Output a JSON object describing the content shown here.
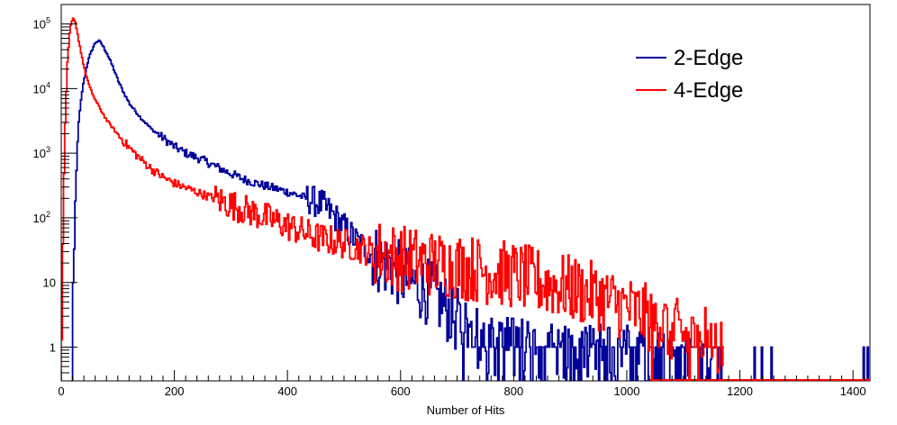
{
  "chart_data": {
    "type": "histogram",
    "xlabel": "Number of Hits",
    "ylabel": "",
    "xlim": [
      0,
      1430
    ],
    "ylim": [
      0.3,
      200000
    ],
    "yscale": "log",
    "grid": false,
    "legend_position": "top-right",
    "x_tick_labels": [
      "0",
      "200",
      "400",
      "600",
      "800",
      "1000",
      "1200",
      "1400"
    ],
    "x_tick_values": [
      0,
      200,
      400,
      600,
      800,
      1000,
      1200,
      1400
    ],
    "y_tick_labels": [
      {
        "value": 1,
        "base": "1",
        "exp": ""
      },
      {
        "value": 10,
        "base": "10",
        "exp": ""
      },
      {
        "value": 100,
        "base": "10",
        "exp": "2"
      },
      {
        "value": 1000,
        "base": "10",
        "exp": "3"
      },
      {
        "value": 10000,
        "base": "10",
        "exp": "4"
      },
      {
        "value": 100000,
        "base": "10",
        "exp": "5"
      }
    ],
    "series": [
      {
        "name": "2-Edge",
        "color": "#000099",
        "points": [
          [
            18,
            0.3
          ],
          [
            20,
            3
          ],
          [
            25,
            400
          ],
          [
            30,
            3000
          ],
          [
            35,
            8000
          ],
          [
            40,
            15000
          ],
          [
            45,
            24000
          ],
          [
            50,
            33000
          ],
          [
            55,
            43000
          ],
          [
            60,
            52000
          ],
          [
            65,
            55000
          ],
          [
            70,
            50000
          ],
          [
            80,
            35000
          ],
          [
            90,
            22000
          ],
          [
            100,
            13000
          ],
          [
            110,
            8500
          ],
          [
            120,
            5800
          ],
          [
            140,
            3500
          ],
          [
            160,
            2300
          ],
          [
            180,
            1700
          ],
          [
            200,
            1250
          ],
          [
            220,
            1000
          ],
          [
            250,
            780
          ],
          [
            280,
            580
          ],
          [
            300,
            480
          ],
          [
            320,
            400
          ],
          [
            350,
            330
          ],
          [
            380,
            280
          ],
          [
            400,
            250
          ],
          [
            420,
            220
          ],
          [
            440,
            190
          ],
          [
            460,
            160
          ],
          [
            480,
            110
          ],
          [
            500,
            70
          ],
          [
            520,
            45
          ],
          [
            540,
            32
          ],
          [
            560,
            22
          ],
          [
            580,
            18
          ],
          [
            600,
            13
          ],
          [
            620,
            10
          ],
          [
            640,
            8
          ],
          [
            660,
            6
          ],
          [
            680,
            4
          ],
          [
            700,
            2.5
          ],
          [
            720,
            1.8
          ],
          [
            740,
            1.3
          ],
          [
            760,
            1
          ],
          [
            800,
            0.9
          ],
          [
            900,
            0.8
          ],
          [
            1000,
            0.7
          ],
          [
            1100,
            0.6
          ],
          [
            1170,
            0.5
          ]
        ]
      },
      {
        "name": "4-Edge",
        "color": "#ff0000",
        "points": [
          [
            0,
            0.5
          ],
          [
            3,
            200
          ],
          [
            6,
            3000
          ],
          [
            10,
            25000
          ],
          [
            15,
            90000
          ],
          [
            20,
            120000
          ],
          [
            25,
            100000
          ],
          [
            30,
            55000
          ],
          [
            40,
            20000
          ],
          [
            50,
            10000
          ],
          [
            60,
            6500
          ],
          [
            70,
            4500
          ],
          [
            80,
            3200
          ],
          [
            100,
            1900
          ],
          [
            120,
            1200
          ],
          [
            140,
            800
          ],
          [
            160,
            560
          ],
          [
            180,
            420
          ],
          [
            200,
            340
          ],
          [
            250,
            230
          ],
          [
            300,
            160
          ],
          [
            350,
            110
          ],
          [
            400,
            75
          ],
          [
            450,
            50
          ],
          [
            500,
            40
          ],
          [
            550,
            30
          ],
          [
            600,
            24
          ],
          [
            650,
            20
          ],
          [
            700,
            18
          ],
          [
            750,
            15
          ],
          [
            800,
            13
          ],
          [
            850,
            10
          ],
          [
            900,
            8
          ],
          [
            950,
            6
          ],
          [
            1000,
            4
          ],
          [
            1050,
            2.5
          ],
          [
            1100,
            1.5
          ],
          [
            1150,
            1.2
          ],
          [
            1170,
            0.8
          ]
        ]
      }
    ],
    "isolated_bins_2edge": [
      1225,
      1238,
      1255,
      1418,
      1425
    ]
  }
}
